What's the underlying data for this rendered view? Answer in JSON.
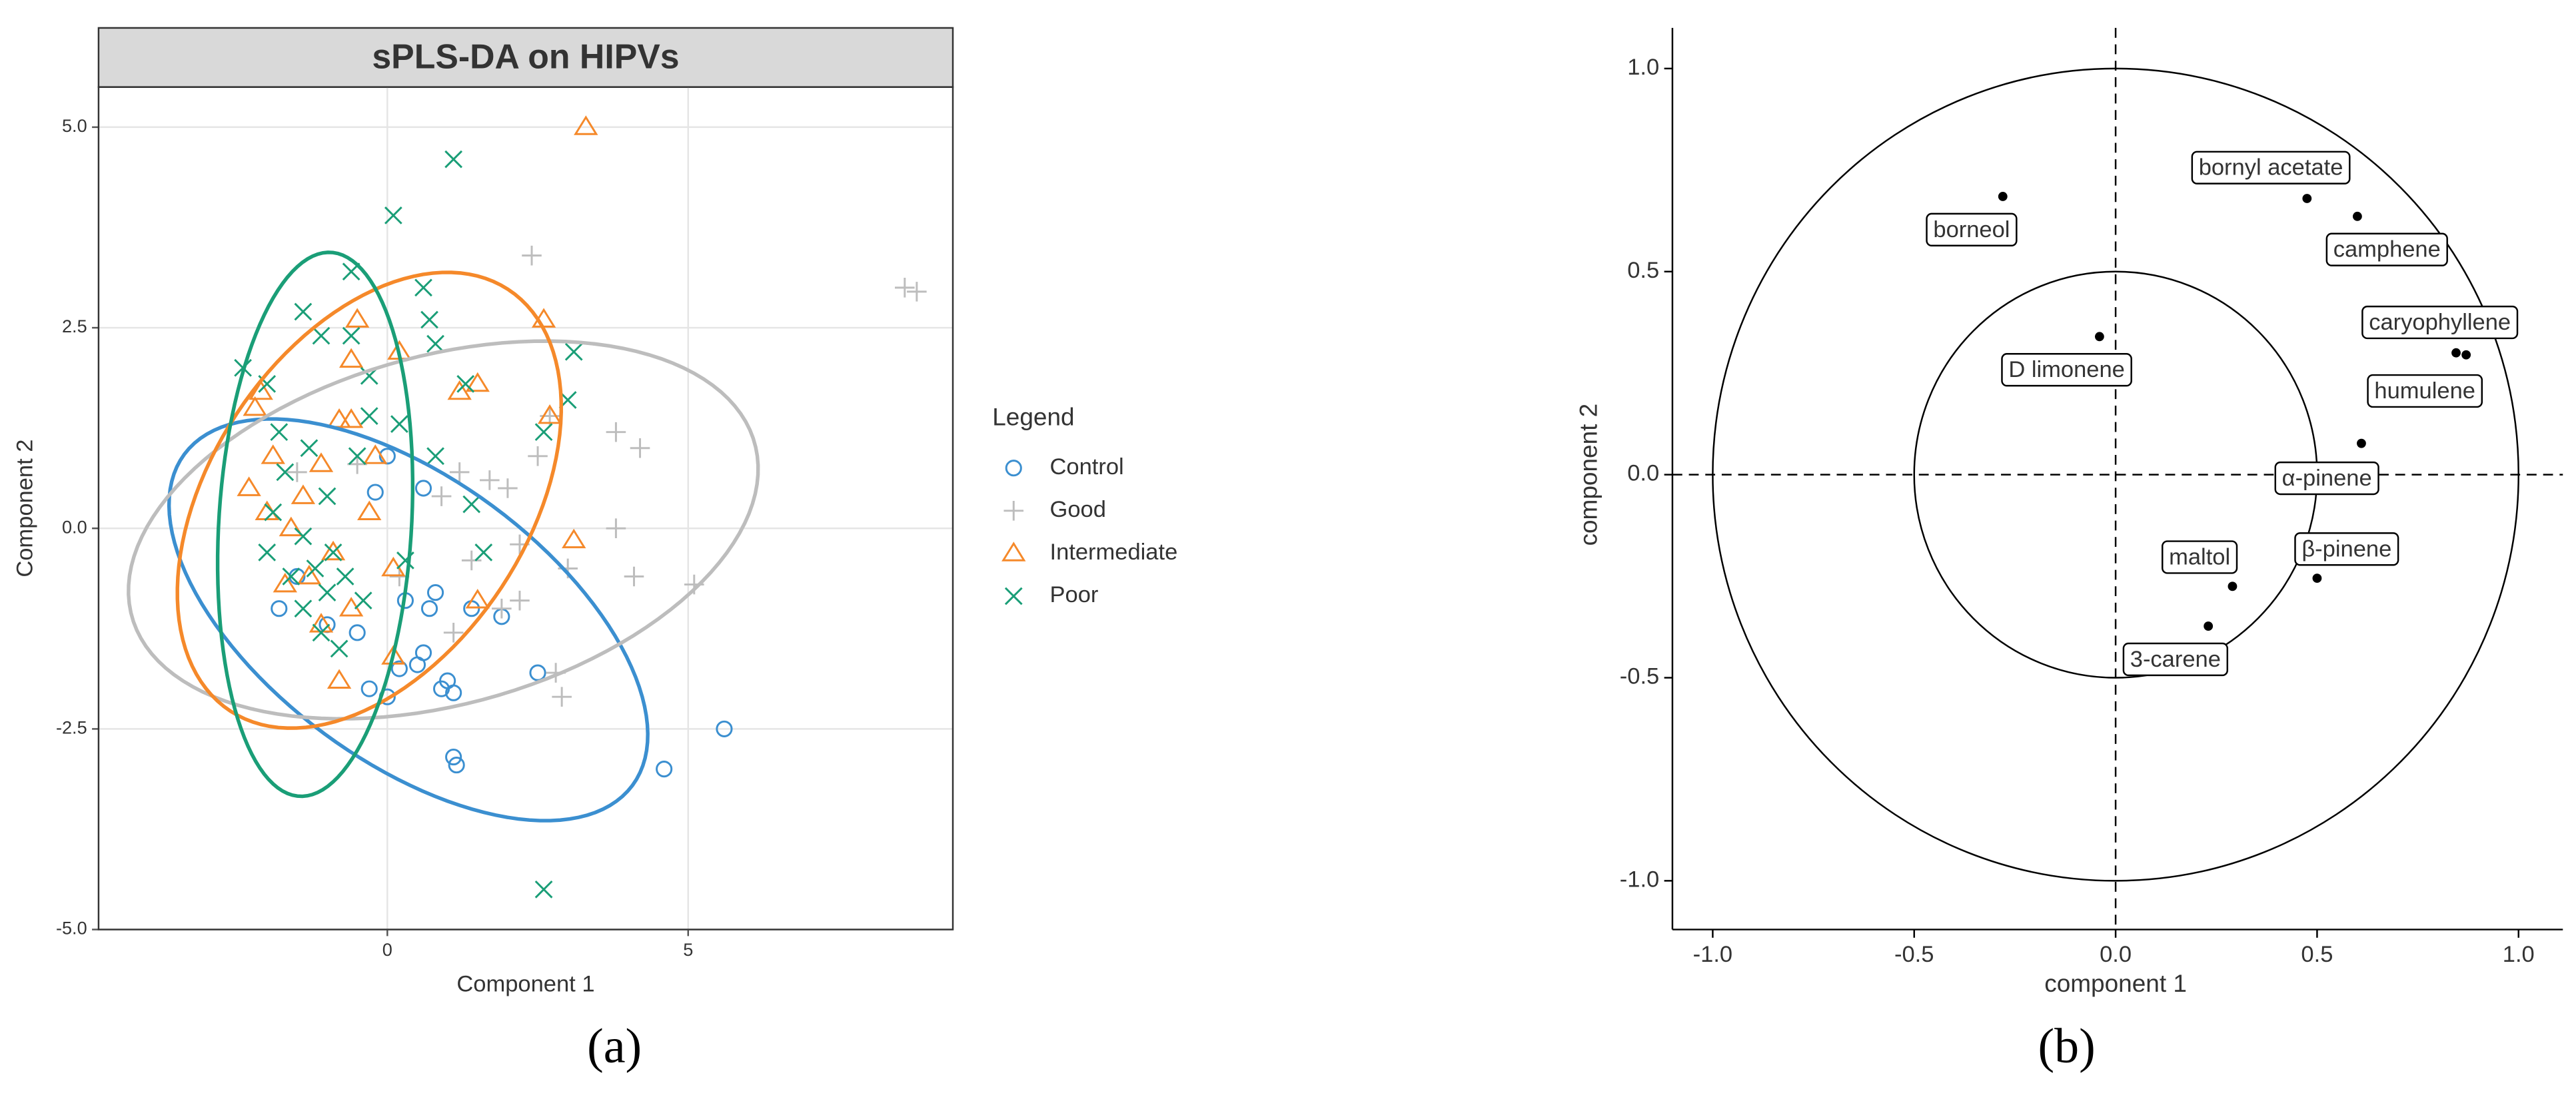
{
  "chart_data": [
    {
      "type": "scatter",
      "title": "sPLS-DA on HIPVs",
      "xlabel": "Component 1",
      "ylabel": "Component 2",
      "xlim": [
        -4.8,
        9.4
      ],
      "ylim": [
        -5.0,
        5.5
      ],
      "xticks": [
        0,
        5
      ],
      "yticks": [
        {
          "value": -5,
          "label": "-5.0"
        },
        -2.5,
        {
          "value": 0,
          "label": "0.0"
        },
        2.5,
        {
          "value": 5,
          "label": "5.0"
        }
      ],
      "grid": true,
      "legend_title": "Legend",
      "legend": "right",
      "series": [
        {
          "name": "Control",
          "color": "#3b8fd0",
          "marker": "circle",
          "x": [
            5.6,
            4.6,
            2.5,
            1.1,
            1.15,
            0.9,
            1.0,
            0.6,
            0.5,
            0.2,
            -0.3,
            0.0,
            1.9,
            1.4,
            0.8,
            0.7,
            0.3,
            0.6,
            -0.2,
            0.0,
            -1.0,
            -1.5,
            -1.8,
            -0.5,
            1.1
          ],
          "y": [
            -2.5,
            -3.0,
            -1.8,
            -2.85,
            -2.95,
            -2.0,
            -1.9,
            -1.55,
            -1.7,
            -1.75,
            -2.0,
            -2.1,
            -1.1,
            -1.0,
            -0.8,
            -1.0,
            -0.9,
            0.5,
            0.45,
            0.9,
            -1.2,
            -0.6,
            -1.0,
            -1.3,
            -2.05
          ],
          "ellipse": {
            "cx": 0.35,
            "cy": -1.14,
            "rx": 4.3,
            "ry": 1.9,
            "angle": -25
          }
        },
        {
          "name": "Good",
          "color": "#bdbdbd",
          "marker": "plus",
          "x": [
            8.6,
            8.8,
            2.4,
            3.8,
            4.2,
            3.8,
            4.1,
            3.0,
            2.8,
            2.9,
            5.1,
            2.7,
            2.5,
            1.7,
            2.0,
            1.2,
            1.4,
            0.9,
            2.2,
            1.9,
            0.2,
            -0.5,
            -1.5,
            1.1,
            2.2
          ],
          "y": [
            3.0,
            2.95,
            3.4,
            1.2,
            1.0,
            0.0,
            -0.6,
            -0.5,
            -1.8,
            -2.1,
            -0.7,
            1.4,
            0.9,
            0.6,
            0.5,
            0.7,
            -0.4,
            0.4,
            -0.2,
            -1.0,
            -0.6,
            0.8,
            0.7,
            -1.3,
            -0.9
          ],
          "ellipse": {
            "cx": 0.93,
            "cy": -0.02,
            "rx": 5.3,
            "ry": 2.2,
            "angle": 10
          }
        },
        {
          "name": "Intermediate",
          "color": "#f5892a",
          "marker": "triangle",
          "x": [
            3.3,
            2.6,
            2.7,
            3.1,
            1.5,
            1.2,
            0.2,
            -0.5,
            -0.6,
            -2.1,
            -2.2,
            -1.9,
            -1.1,
            -0.8,
            -0.6,
            -1.4,
            -2.0,
            -1.6,
            -0.9,
            -0.3,
            0.1,
            -0.6,
            -1.1,
            -0.8,
            0.1,
            -1.3,
            1.5,
            -2.3,
            -0.2,
            -1.7
          ],
          "y": [
            5.0,
            2.6,
            1.4,
            -0.15,
            1.8,
            1.7,
            2.2,
            2.6,
            2.1,
            1.7,
            1.5,
            0.9,
            0.8,
            1.35,
            1.35,
            0.4,
            0.2,
            0.0,
            -0.3,
            0.2,
            -0.5,
            -1.0,
            -1.2,
            -1.9,
            -1.6,
            -0.6,
            -0.9,
            0.5,
            0.9,
            -0.7
          ],
          "ellipse": {
            "cx": -0.3,
            "cy": 0.35,
            "rx": 3.6,
            "ry": 2.3,
            "angle": 37
          }
        },
        {
          "name": "Poor",
          "color": "#1a9e77",
          "marker": "x",
          "x": [
            1.1,
            0.1,
            2.6,
            -0.6,
            0.6,
            0.7,
            -1.4,
            -1.1,
            -0.6,
            -2.4,
            -2.0,
            -0.3,
            0.8,
            1.3,
            3.1,
            3.0,
            2.6,
            -0.3,
            0.2,
            -1.8,
            -1.3,
            -0.5,
            -1.7,
            -1.0,
            -1.9,
            -1.4,
            -0.9,
            -1.2,
            -1.6,
            -0.7,
            -1.0,
            -1.4,
            -0.4,
            0.3,
            1.6,
            -1.1,
            -0.8,
            1.4,
            0.8,
            -2.0
          ],
          "y": [
            4.6,
            3.9,
            -4.5,
            3.2,
            3.0,
            2.6,
            2.7,
            2.4,
            2.4,
            2.0,
            1.8,
            1.9,
            2.3,
            1.8,
            2.2,
            1.6,
            1.2,
            1.4,
            1.3,
            1.2,
            1.0,
            0.9,
            0.7,
            0.4,
            0.2,
            -0.1,
            -0.3,
            -0.5,
            -0.6,
            -0.6,
            -0.8,
            -1.0,
            -0.9,
            -0.4,
            -0.3,
            -1.3,
            -1.5,
            0.3,
            0.9,
            -0.3
          ],
          "ellipse": {
            "cx": -1.2,
            "cy": 0.05,
            "rx": 3.4,
            "ry": 1.6,
            "angle": 85
          }
        }
      ]
    },
    {
      "type": "correlation_circle",
      "xlabel": "component 1",
      "ylabel": "component 2",
      "xlim": [
        -1.1,
        1.11
      ],
      "ylim": [
        -1.12,
        1.1
      ],
      "xticks": [
        {
          "value": -1,
          "label": "-1.0"
        },
        -0.5,
        {
          "value": 0,
          "label": "0.0"
        },
        0.5,
        {
          "value": 1,
          "label": "1.0"
        }
      ],
      "yticks": [
        {
          "value": -1,
          "label": "-1.0"
        },
        -0.5,
        {
          "value": 0,
          "label": "0.0"
        },
        0.5,
        {
          "value": 1,
          "label": "1.0"
        }
      ],
      "circles": [
        1,
        0.5
      ],
      "labels": [
        "borneol",
        "bornyl acetate",
        "camphene",
        "caryophyllene",
        "humulene",
        "D limonene",
        "α-pinene",
        "β-pinene",
        "maltol",
        "3-carene"
      ],
      "x": [
        -0.28,
        0.475,
        0.6,
        0.87,
        0.845,
        -0.04,
        0.61,
        0.5,
        0.29,
        0.23
      ],
      "y": [
        0.685,
        0.68,
        0.636,
        0.295,
        0.3,
        0.34,
        0.077,
        -0.255,
        -0.275,
        -0.373
      ]
    }
  ],
  "panel_labels": [
    "(a)",
    "(b)"
  ]
}
